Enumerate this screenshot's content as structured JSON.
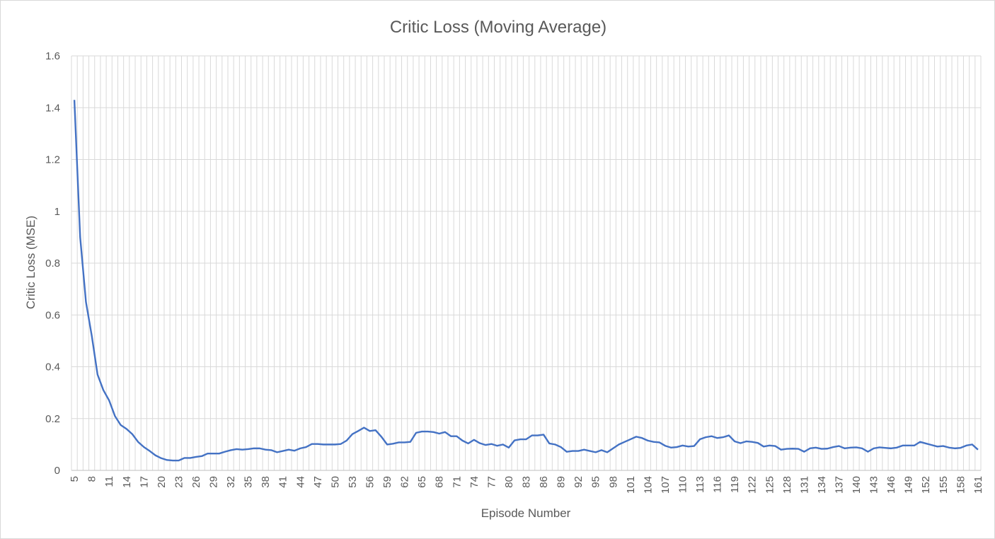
{
  "chart_data": {
    "type": "line",
    "title": "Critic Loss (Moving Average)",
    "xlabel": "Episode Number",
    "ylabel": "Critic Loss (MSE)",
    "ylim": [
      0,
      1.6
    ],
    "yticks": [
      "0",
      "0.2",
      "0.4",
      "0.6",
      "0.8",
      "1",
      "1.2",
      "1.4",
      "1.6"
    ],
    "x_start": 5,
    "x_end": 161,
    "x_tick_step": 3,
    "grid": true,
    "legend": "none",
    "colors": {
      "line": "#4472c4",
      "grid": "#d9d9d9",
      "axis": "#bfbfbf",
      "text": "#595959"
    },
    "series": [
      {
        "values": [
          1.43,
          0.9,
          0.65,
          0.52,
          0.37,
          0.31,
          0.27,
          0.21,
          0.175,
          0.16,
          0.14,
          0.11,
          0.09,
          0.075,
          0.058,
          0.047,
          0.04,
          0.038,
          0.038,
          0.048,
          0.048,
          0.052,
          0.055,
          0.065,
          0.065,
          0.065,
          0.072,
          0.078,
          0.082,
          0.08,
          0.082,
          0.085,
          0.085,
          0.08,
          0.078,
          0.07,
          0.075,
          0.08,
          0.076,
          0.085,
          0.09,
          0.102,
          0.102,
          0.1,
          0.1,
          0.1,
          0.102,
          0.115,
          0.14,
          0.152,
          0.165,
          0.152,
          0.155,
          0.13,
          0.1,
          0.103,
          0.108,
          0.108,
          0.11,
          0.145,
          0.15,
          0.15,
          0.148,
          0.142,
          0.148,
          0.132,
          0.132,
          0.115,
          0.104,
          0.118,
          0.105,
          0.098,
          0.102,
          0.095,
          0.1,
          0.088,
          0.116,
          0.12,
          0.12,
          0.135,
          0.135,
          0.138,
          0.104,
          0.1,
          0.09,
          0.072,
          0.075,
          0.075,
          0.08,
          0.075,
          0.07,
          0.078,
          0.07,
          0.085,
          0.1,
          0.11,
          0.12,
          0.13,
          0.125,
          0.115,
          0.11,
          0.108,
          0.095,
          0.088,
          0.09,
          0.096,
          0.092,
          0.094,
          0.12,
          0.128,
          0.132,
          0.125,
          0.128,
          0.135,
          0.112,
          0.105,
          0.112,
          0.11,
          0.106,
          0.092,
          0.096,
          0.094,
          0.08,
          0.083,
          0.084,
          0.083,
          0.072,
          0.085,
          0.088,
          0.083,
          0.084,
          0.09,
          0.094,
          0.085,
          0.088,
          0.089,
          0.085,
          0.072,
          0.085,
          0.089,
          0.087,
          0.085,
          0.088,
          0.096,
          0.096,
          0.096,
          0.11,
          0.104,
          0.098,
          0.092,
          0.094,
          0.088,
          0.085,
          0.087,
          0.096,
          0.1,
          0.08
        ]
      }
    ]
  }
}
